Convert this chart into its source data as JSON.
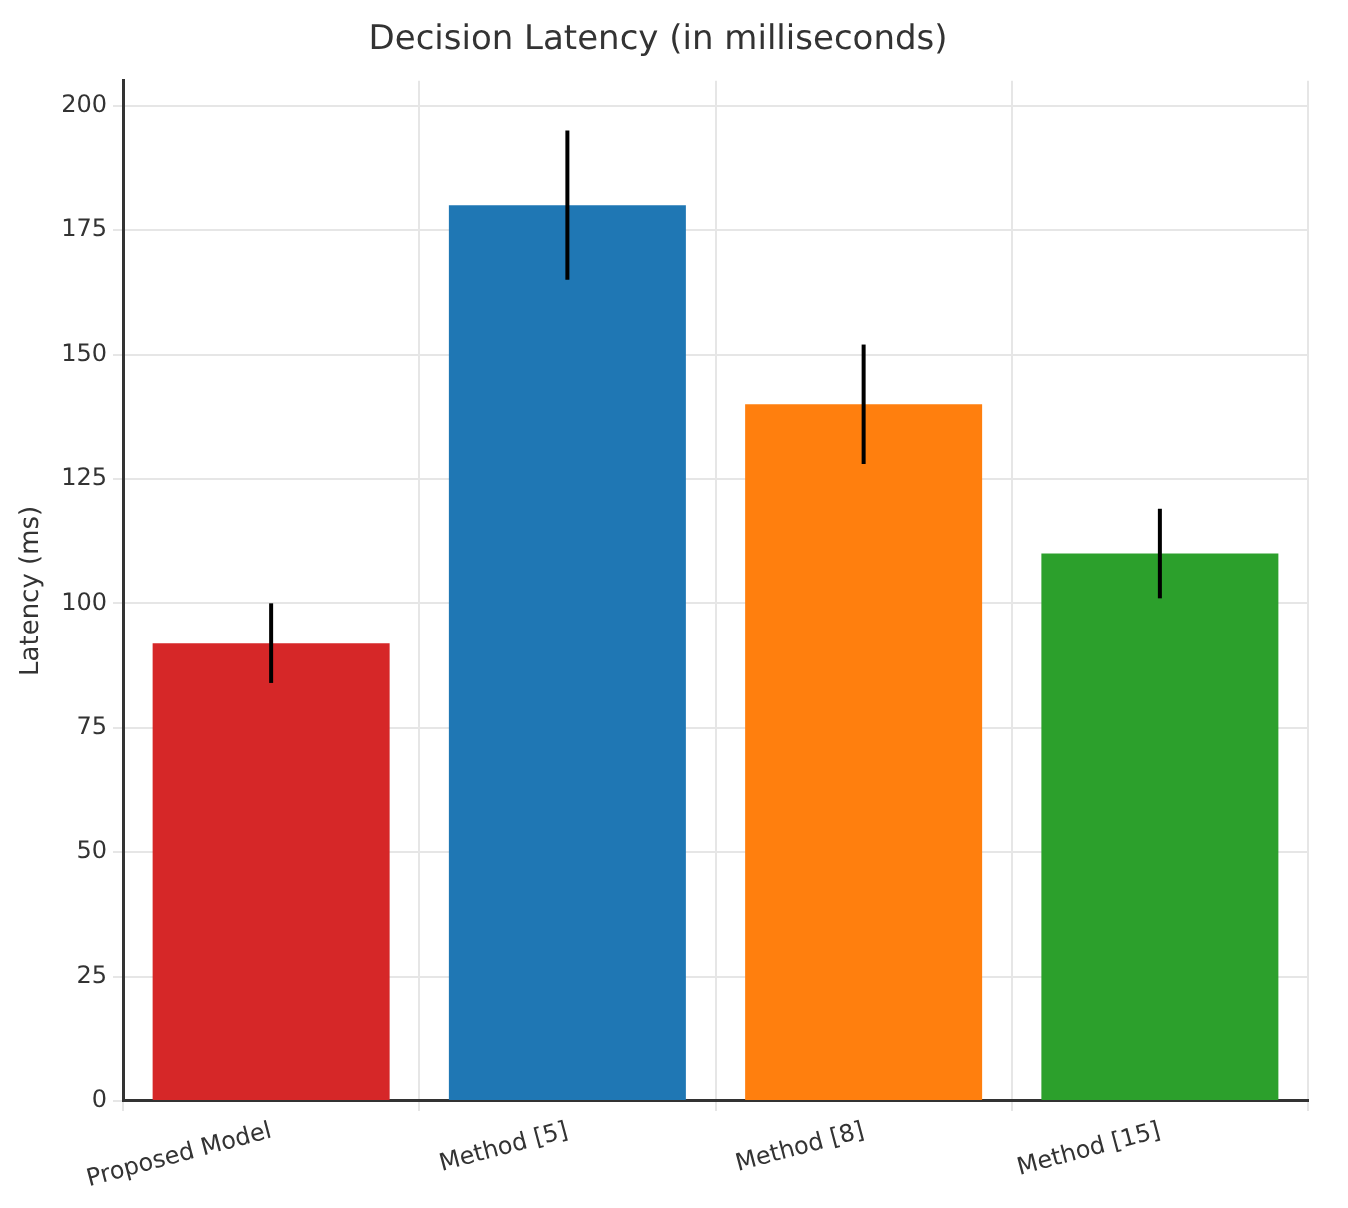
{
  "chart_data": {
    "type": "bar",
    "title": "Decision Latency (in milliseconds)",
    "ylabel": "Latency (ms)",
    "categories": [
      "Proposed Model",
      "Method [5]",
      "Method [8]",
      "Method [15]"
    ],
    "values": [
      92,
      180,
      140,
      110
    ],
    "colors": [
      "#d62728",
      "#1f77b4",
      "#ff7f0e",
      "#2ca02c"
    ],
    "errors": [
      8,
      15,
      12,
      9
    ],
    "ylim": [
      0,
      205
    ],
    "yticks": [
      0,
      25,
      50,
      75,
      100,
      125,
      150,
      175,
      200
    ],
    "grid": true
  }
}
